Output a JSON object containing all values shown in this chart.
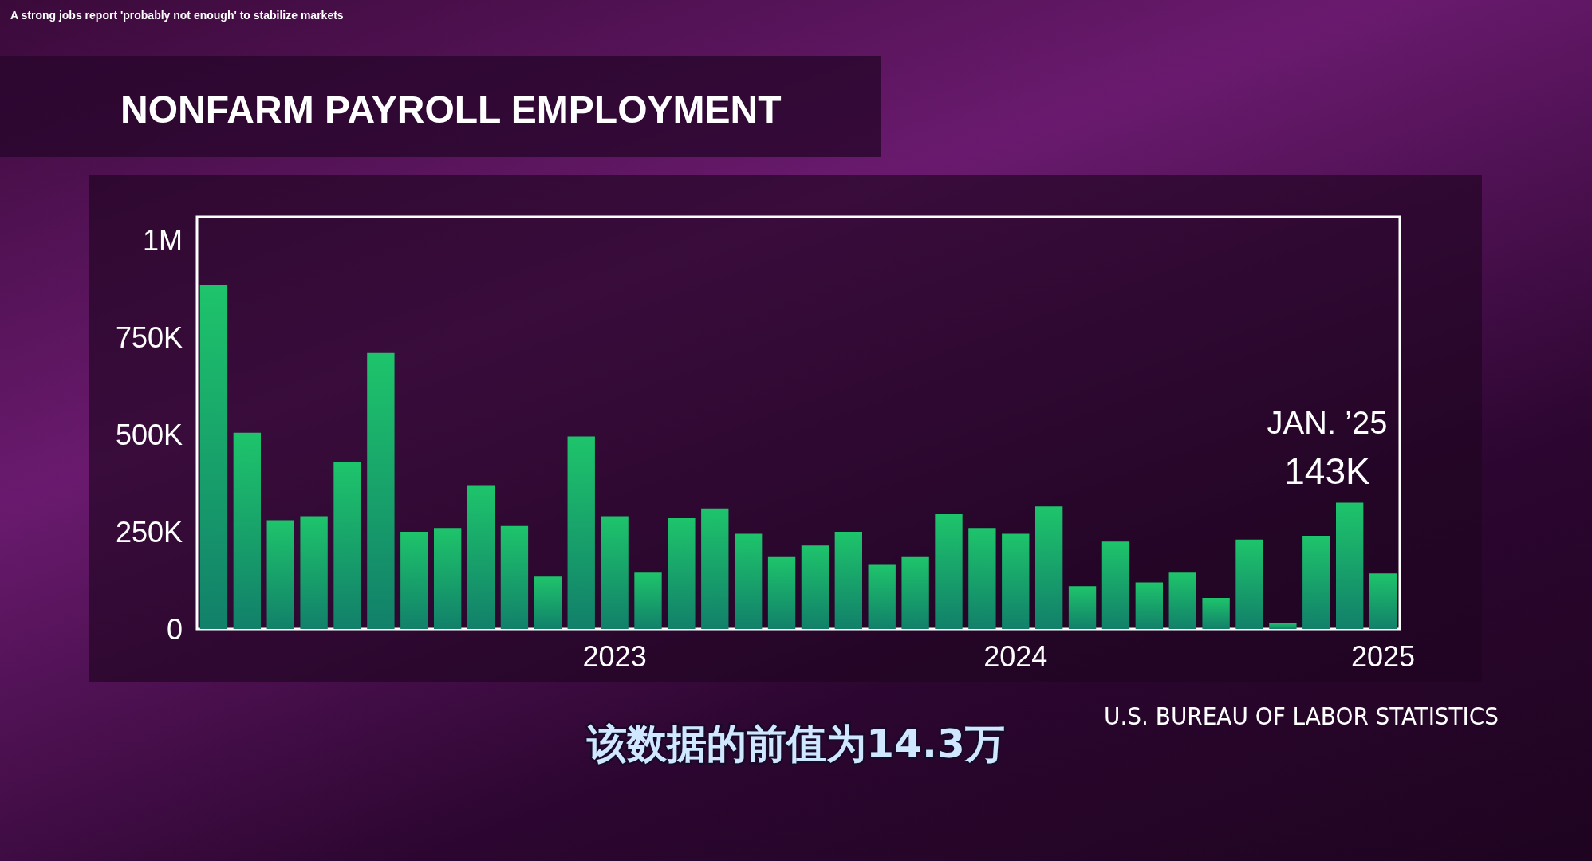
{
  "chart_data": {
    "type": "bar",
    "title": "NONFARM PAYROLL EMPLOYMENT",
    "categories": [
      null,
      null,
      null,
      null,
      null,
      null,
      null,
      null,
      null,
      null,
      null,
      null,
      "2023",
      null,
      null,
      null,
      null,
      null,
      null,
      null,
      null,
      null,
      null,
      null,
      "2024",
      null,
      null,
      null,
      null,
      null,
      null,
      null,
      null,
      null,
      null,
      "2025"
    ],
    "values": [
      885000,
      505000,
      280000,
      290000,
      430000,
      710000,
      250000,
      260000,
      370000,
      265000,
      135000,
      495000,
      290000,
      145000,
      285000,
      310000,
      245000,
      185000,
      215000,
      250000,
      165000,
      185000,
      295000,
      260000,
      245000,
      315000,
      110000,
      225000,
      120000,
      145000,
      80000,
      230000,
      15000,
      240000,
      325000,
      143000
    ],
    "color": "#1ec46b",
    "ylim": [
      0,
      1060000
    ],
    "yticks": [
      {
        "value": 0,
        "label": "0"
      },
      {
        "value": 250000,
        "label": "250K"
      },
      {
        "value": 500000,
        "label": "500K"
      },
      {
        "value": 750000,
        "label": "750K"
      },
      {
        "value": 1000000,
        "label": "1M"
      }
    ],
    "grid": false,
    "annotations": [
      "A strong jobs report 'probably not enough' to stabilize markets",
      "U.S. BUREAU OF LABOR STATISTICS",
      "该数据的前值为14.3万",
      "JAN. ’25 143K"
    ]
  }
}
